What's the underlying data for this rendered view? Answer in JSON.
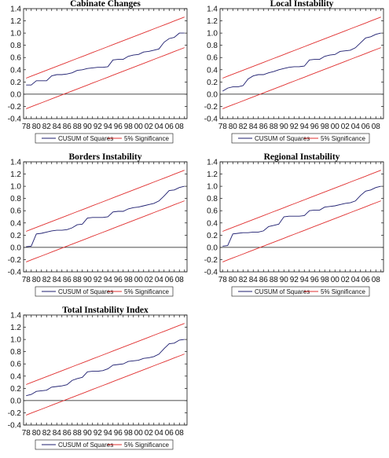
{
  "chart_data": [
    {
      "type": "line",
      "title": "Cabinate Changes",
      "xlabel": "",
      "ylabel": "",
      "x": [
        "78",
        "79",
        "80",
        "81",
        "82",
        "83",
        "84",
        "85",
        "86",
        "87",
        "88",
        "89",
        "90",
        "91",
        "92",
        "93",
        "94",
        "95",
        "96",
        "97",
        "98",
        "99",
        "00",
        "01",
        "02",
        "03",
        "04",
        "05",
        "06",
        "07",
        "08",
        "09"
      ],
      "xtick_labels": [
        "78",
        "80",
        "82",
        "84",
        "86",
        "88",
        "90",
        "92",
        "94",
        "96",
        "98",
        "00",
        "02",
        "04",
        "06",
        "08"
      ],
      "ylim": [
        -0.4,
        1.4
      ],
      "yticks": [
        "-0.4",
        "-0.2",
        "0.0",
        "0.2",
        "0.4",
        "0.6",
        "0.8",
        "1.0",
        "1.2",
        "1.4"
      ],
      "grid": false,
      "series": [
        {
          "name": "CUSUM of Squares",
          "color": "#1c1c6e",
          "values": [
            0.15,
            0.15,
            0.22,
            0.22,
            0.22,
            0.3,
            0.32,
            0.32,
            0.33,
            0.35,
            0.39,
            0.4,
            0.42,
            0.43,
            0.44,
            0.44,
            0.45,
            0.56,
            0.57,
            0.57,
            0.62,
            0.64,
            0.65,
            0.69,
            0.7,
            0.72,
            0.74,
            0.85,
            0.91,
            0.93,
            1.0,
            1.0
          ]
        },
        {
          "name": "5% Significance",
          "color": "#e03030",
          "values": [
            0.262,
            0.295,
            0.327,
            0.359,
            0.391,
            0.424,
            0.456,
            0.488,
            0.52,
            0.553,
            0.585,
            0.617,
            0.649,
            0.682,
            0.714,
            0.746,
            0.778,
            0.811,
            0.843,
            0.875,
            0.907,
            0.94,
            0.972,
            1.004,
            1.036,
            1.069,
            1.101,
            1.133,
            1.165,
            1.198,
            1.23,
            1.262
          ]
        },
        {
          "name": "5% Significance",
          "color": "#e03030",
          "values": [
            -0.238,
            -0.205,
            -0.173,
            -0.141,
            -0.109,
            -0.076,
            -0.044,
            -0.012,
            0.02,
            0.053,
            0.085,
            0.117,
            0.149,
            0.182,
            0.214,
            0.246,
            0.278,
            0.311,
            0.343,
            0.375,
            0.407,
            0.44,
            0.472,
            0.504,
            0.536,
            0.569,
            0.601,
            0.633,
            0.665,
            0.698,
            0.73,
            0.762
          ]
        }
      ],
      "legend": [
        "CUSUM of Squares",
        "5% Significance"
      ]
    },
    {
      "type": "line",
      "title": "Local Instability",
      "xlabel": "",
      "ylabel": "",
      "x": [
        "78",
        "79",
        "80",
        "81",
        "82",
        "83",
        "84",
        "85",
        "86",
        "87",
        "88",
        "89",
        "90",
        "91",
        "92",
        "93",
        "94",
        "95",
        "96",
        "97",
        "98",
        "99",
        "00",
        "01",
        "02",
        "03",
        "04",
        "05",
        "06",
        "07",
        "08",
        "09"
      ],
      "xtick_labels": [
        "78",
        "80",
        "82",
        "84",
        "86",
        "88",
        "90",
        "92",
        "94",
        "96",
        "98",
        "00",
        "02",
        "04",
        "06",
        "08"
      ],
      "ylim": [
        -0.4,
        1.4
      ],
      "yticks": [
        "-0.4",
        "-0.2",
        "0.0",
        "0.2",
        "0.4",
        "0.6",
        "0.8",
        "1.0",
        "1.2",
        "1.4"
      ],
      "grid": false,
      "series": [
        {
          "name": "CUSUM of Squares",
          "color": "#1c1c6e",
          "values": [
            0.05,
            0.1,
            0.12,
            0.12,
            0.14,
            0.25,
            0.3,
            0.32,
            0.32,
            0.35,
            0.37,
            0.4,
            0.42,
            0.44,
            0.45,
            0.45,
            0.46,
            0.56,
            0.57,
            0.57,
            0.62,
            0.64,
            0.65,
            0.7,
            0.71,
            0.72,
            0.76,
            0.84,
            0.92,
            0.94,
            0.98,
            1.0
          ]
        },
        {
          "name": "5% Significance",
          "color": "#e03030",
          "values": [
            0.262,
            0.295,
            0.327,
            0.359,
            0.391,
            0.424,
            0.456,
            0.488,
            0.52,
            0.553,
            0.585,
            0.617,
            0.649,
            0.682,
            0.714,
            0.746,
            0.778,
            0.811,
            0.843,
            0.875,
            0.907,
            0.94,
            0.972,
            1.004,
            1.036,
            1.069,
            1.101,
            1.133,
            1.165,
            1.198,
            1.23,
            1.262
          ]
        },
        {
          "name": "5% Significance",
          "color": "#e03030",
          "values": [
            -0.238,
            -0.205,
            -0.173,
            -0.141,
            -0.109,
            -0.076,
            -0.044,
            -0.012,
            0.02,
            0.053,
            0.085,
            0.117,
            0.149,
            0.182,
            0.214,
            0.246,
            0.278,
            0.311,
            0.343,
            0.375,
            0.407,
            0.44,
            0.472,
            0.504,
            0.536,
            0.569,
            0.601,
            0.633,
            0.665,
            0.698,
            0.73,
            0.762
          ]
        }
      ],
      "legend": [
        "CUSUM of Squares",
        "5% Significance"
      ]
    },
    {
      "type": "line",
      "title": "Borders Instability",
      "xlabel": "",
      "ylabel": "",
      "x": [
        "78",
        "79",
        "80",
        "81",
        "82",
        "83",
        "84",
        "85",
        "86",
        "87",
        "88",
        "89",
        "90",
        "91",
        "92",
        "93",
        "94",
        "95",
        "96",
        "97",
        "98",
        "99",
        "00",
        "01",
        "02",
        "03",
        "04",
        "05",
        "06",
        "07",
        "08",
        "09"
      ],
      "xtick_labels": [
        "78",
        "80",
        "82",
        "84",
        "86",
        "88",
        "90",
        "92",
        "94",
        "96",
        "98",
        "00",
        "02",
        "04",
        "06",
        "08"
      ],
      "ylim": [
        -0.4,
        1.4
      ],
      "yticks": [
        "-0.4",
        "-0.2",
        "0.0",
        "0.2",
        "0.4",
        "0.6",
        "0.8",
        "1.0",
        "1.2",
        "1.4"
      ],
      "grid": false,
      "series": [
        {
          "name": "CUSUM of Squares",
          "color": "#1c1c6e",
          "values": [
            0.01,
            0.02,
            0.22,
            0.23,
            0.25,
            0.27,
            0.28,
            0.28,
            0.29,
            0.32,
            0.37,
            0.38,
            0.48,
            0.49,
            0.49,
            0.49,
            0.5,
            0.58,
            0.59,
            0.59,
            0.63,
            0.65,
            0.66,
            0.68,
            0.7,
            0.72,
            0.76,
            0.84,
            0.93,
            0.94,
            0.98,
            1.0
          ]
        },
        {
          "name": "5% Significance",
          "color": "#e03030",
          "values": [
            0.262,
            0.295,
            0.327,
            0.359,
            0.391,
            0.424,
            0.456,
            0.488,
            0.52,
            0.553,
            0.585,
            0.617,
            0.649,
            0.682,
            0.714,
            0.746,
            0.778,
            0.811,
            0.843,
            0.875,
            0.907,
            0.94,
            0.972,
            1.004,
            1.036,
            1.069,
            1.101,
            1.133,
            1.165,
            1.198,
            1.23,
            1.262
          ]
        },
        {
          "name": "5% Significance",
          "color": "#e03030",
          "values": [
            -0.238,
            -0.205,
            -0.173,
            -0.141,
            -0.109,
            -0.076,
            -0.044,
            -0.012,
            0.02,
            0.053,
            0.085,
            0.117,
            0.149,
            0.182,
            0.214,
            0.246,
            0.278,
            0.311,
            0.343,
            0.375,
            0.407,
            0.44,
            0.472,
            0.504,
            0.536,
            0.569,
            0.601,
            0.633,
            0.665,
            0.698,
            0.73,
            0.762
          ]
        }
      ],
      "legend": [
        "CUSUM of Squares",
        "5% Significance"
      ]
    },
    {
      "type": "line",
      "title": "Regional Instability",
      "xlabel": "",
      "ylabel": "",
      "x": [
        "78",
        "79",
        "80",
        "81",
        "82",
        "83",
        "84",
        "85",
        "86",
        "87",
        "88",
        "89",
        "90",
        "91",
        "92",
        "93",
        "94",
        "95",
        "96",
        "97",
        "98",
        "99",
        "00",
        "01",
        "02",
        "03",
        "04",
        "05",
        "06",
        "07",
        "08",
        "09"
      ],
      "xtick_labels": [
        "78",
        "80",
        "82",
        "84",
        "86",
        "88",
        "90",
        "92",
        "94",
        "96",
        "98",
        "00",
        "02",
        "04",
        "06",
        "08"
      ],
      "ylim": [
        -0.4,
        1.4
      ],
      "yticks": [
        "-0.4",
        "-0.2",
        "0.0",
        "0.2",
        "0.4",
        "0.6",
        "0.8",
        "1.0",
        "1.2",
        "1.4"
      ],
      "grid": false,
      "series": [
        {
          "name": "CUSUM of Squares",
          "color": "#1c1c6e",
          "values": [
            0.02,
            0.03,
            0.22,
            0.23,
            0.24,
            0.24,
            0.25,
            0.25,
            0.27,
            0.34,
            0.36,
            0.38,
            0.5,
            0.51,
            0.51,
            0.51,
            0.52,
            0.6,
            0.61,
            0.61,
            0.66,
            0.67,
            0.68,
            0.7,
            0.72,
            0.73,
            0.76,
            0.85,
            0.92,
            0.94,
            0.98,
            1.0
          ]
        },
        {
          "name": "5% Significance",
          "color": "#e03030",
          "values": [
            0.262,
            0.295,
            0.327,
            0.359,
            0.391,
            0.424,
            0.456,
            0.488,
            0.52,
            0.553,
            0.585,
            0.617,
            0.649,
            0.682,
            0.714,
            0.746,
            0.778,
            0.811,
            0.843,
            0.875,
            0.907,
            0.94,
            0.972,
            1.004,
            1.036,
            1.069,
            1.101,
            1.133,
            1.165,
            1.198,
            1.23,
            1.262
          ]
        },
        {
          "name": "5% Significance",
          "color": "#e03030",
          "values": [
            -0.238,
            -0.205,
            -0.173,
            -0.141,
            -0.109,
            -0.076,
            -0.044,
            -0.012,
            0.02,
            0.053,
            0.085,
            0.117,
            0.149,
            0.182,
            0.214,
            0.246,
            0.278,
            0.311,
            0.343,
            0.375,
            0.407,
            0.44,
            0.472,
            0.504,
            0.536,
            0.569,
            0.601,
            0.633,
            0.665,
            0.698,
            0.73,
            0.762
          ]
        }
      ],
      "legend": [
        "CUSUM of Squares",
        "5% Significance"
      ]
    },
    {
      "type": "line",
      "title": "Total Instability Index",
      "xlabel": "",
      "ylabel": "",
      "x": [
        "78",
        "79",
        "80",
        "81",
        "82",
        "83",
        "84",
        "85",
        "86",
        "87",
        "88",
        "89",
        "90",
        "91",
        "92",
        "93",
        "94",
        "95",
        "96",
        "97",
        "98",
        "99",
        "00",
        "01",
        "02",
        "03",
        "04",
        "05",
        "06",
        "07",
        "08",
        "09"
      ],
      "xtick_labels": [
        "78",
        "80",
        "82",
        "84",
        "86",
        "88",
        "90",
        "92",
        "94",
        "96",
        "98",
        "00",
        "02",
        "04",
        "06",
        "08"
      ],
      "ylim": [
        -0.4,
        1.4
      ],
      "yticks": [
        "-0.4",
        "-0.2",
        "0.0",
        "0.2",
        "0.4",
        "0.6",
        "0.8",
        "1.0",
        "1.2",
        "1.4"
      ],
      "grid": false,
      "series": [
        {
          "name": "CUSUM of Squares",
          "color": "#1c1c6e",
          "values": [
            0.08,
            0.1,
            0.15,
            0.16,
            0.17,
            0.22,
            0.23,
            0.24,
            0.26,
            0.33,
            0.36,
            0.38,
            0.47,
            0.48,
            0.48,
            0.49,
            0.52,
            0.58,
            0.59,
            0.6,
            0.64,
            0.65,
            0.66,
            0.69,
            0.7,
            0.72,
            0.76,
            0.85,
            0.93,
            0.94,
            0.99,
            1.0
          ]
        },
        {
          "name": "5% Significance",
          "color": "#e03030",
          "values": [
            0.262,
            0.295,
            0.327,
            0.359,
            0.391,
            0.424,
            0.456,
            0.488,
            0.52,
            0.553,
            0.585,
            0.617,
            0.649,
            0.682,
            0.714,
            0.746,
            0.778,
            0.811,
            0.843,
            0.875,
            0.907,
            0.94,
            0.972,
            1.004,
            1.036,
            1.069,
            1.101,
            1.133,
            1.165,
            1.198,
            1.23,
            1.262
          ]
        },
        {
          "name": "5% Significance",
          "color": "#e03030",
          "values": [
            -0.238,
            -0.205,
            -0.173,
            -0.141,
            -0.109,
            -0.076,
            -0.044,
            -0.012,
            0.02,
            0.053,
            0.085,
            0.117,
            0.149,
            0.182,
            0.214,
            0.246,
            0.278,
            0.311,
            0.343,
            0.375,
            0.407,
            0.44,
            0.472,
            0.504,
            0.536,
            0.569,
            0.601,
            0.633,
            0.665,
            0.698,
            0.73,
            0.762
          ]
        }
      ],
      "legend": [
        "CUSUM of Squares",
        "5% Significance"
      ]
    }
  ]
}
